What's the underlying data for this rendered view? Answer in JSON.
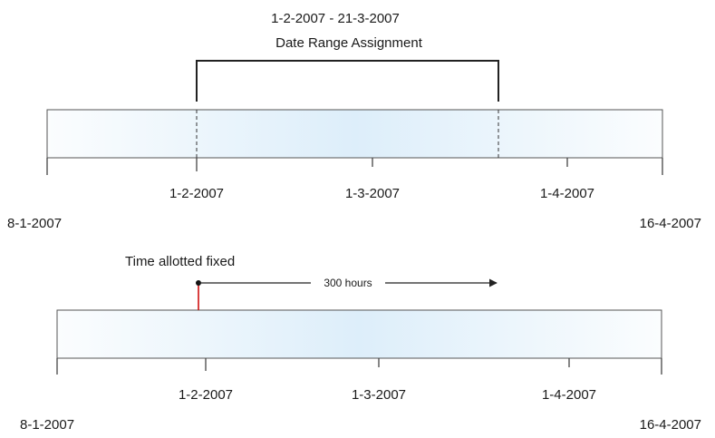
{
  "top_diagram": {
    "range_text": "1-2-2007 - 21-3-2007",
    "title": "Date Range Assignment",
    "ticks": [
      "1-2-2007",
      "1-3-2007",
      "1-4-2007"
    ],
    "start_label": "8-1-2007",
    "end_label": "16-4-2007"
  },
  "bottom_diagram": {
    "title": "Time allotted fixed",
    "duration": "300 hours",
    "ticks": [
      "1-2-2007",
      "1-3-2007",
      "1-4-2007"
    ],
    "start_label": "8-1-2007",
    "end_label": "16-4-2007"
  },
  "colors": {
    "bar_center": "#ddeefa",
    "bar_edge": "#fbfdfe",
    "line": "#333333",
    "fixed_marker": "#cc0000"
  }
}
